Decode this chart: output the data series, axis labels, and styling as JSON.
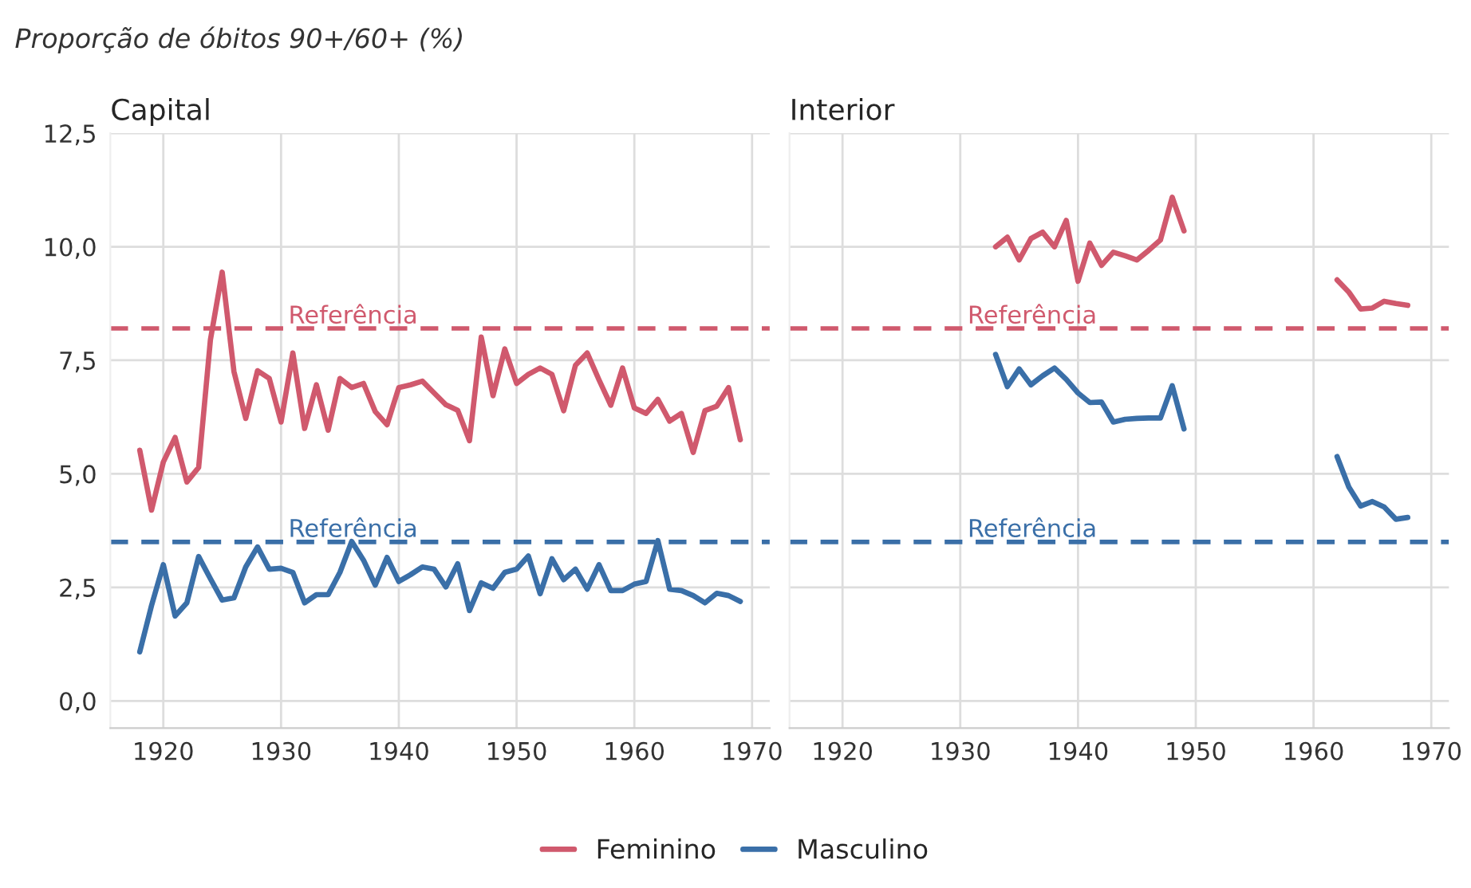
{
  "chart_data": [
    {
      "type": "line",
      "title": "Capital",
      "ylabel": "Proporção de óbitos 90+/60+ (%)",
      "xlim": [
        1915.5,
        1971.5
      ],
      "ylim": [
        -0.6,
        12.5
      ],
      "xticks": [
        1920,
        1930,
        1940,
        1950,
        1960,
        1970
      ],
      "yticks": [
        {
          "value": 0,
          "label": "0,0"
        },
        {
          "value": 2.5,
          "label": "2,5"
        },
        {
          "value": 5,
          "label": "5,0"
        },
        {
          "value": 7.5,
          "label": "7,5"
        },
        {
          "value": 10,
          "label": "10,0"
        },
        {
          "value": 12.5,
          "label": "12,5"
        }
      ],
      "grid": true,
      "legend": "bottom",
      "line_style": "solid",
      "x": [
        1918,
        1919,
        1920,
        1921,
        1922,
        1923,
        1924,
        1925,
        1926,
        1927,
        1928,
        1929,
        1930,
        1931,
        1932,
        1933,
        1934,
        1935,
        1936,
        1937,
        1938,
        1939,
        1940,
        1941,
        1942,
        1943,
        1944,
        1945,
        1946,
        1947,
        1948,
        1949,
        1950,
        1951,
        1952,
        1953,
        1954,
        1955,
        1956,
        1957,
        1958,
        1959,
        1960,
        1961,
        1962,
        1963,
        1964,
        1965,
        1966,
        1967,
        1968,
        1969
      ],
      "series": [
        {
          "name": "Feminino",
          "color": "#d0596d",
          "values": [
            5.52,
            4.2,
            5.26,
            5.8,
            4.82,
            5.14,
            7.95,
            9.44,
            7.25,
            6.22,
            7.27,
            7.1,
            6.14,
            7.66,
            6.0,
            6.96,
            5.96,
            7.1,
            6.9,
            6.99,
            6.37,
            6.08,
            6.9,
            6.96,
            7.04,
            6.78,
            6.52,
            6.4,
            5.73,
            8.01,
            6.72,
            7.75,
            6.99,
            7.19,
            7.33,
            7.19,
            6.39,
            7.39,
            7.66,
            7.07,
            6.51,
            7.33,
            6.45,
            6.33,
            6.64,
            6.16,
            6.33,
            5.47,
            6.39,
            6.49,
            6.9,
            5.75
          ]
        },
        {
          "name": "Masculino",
          "color": "#3a6fa8",
          "values": [
            1.08,
            2.1,
            3.0,
            1.87,
            2.16,
            3.18,
            2.69,
            2.22,
            2.27,
            2.95,
            3.39,
            2.9,
            2.92,
            2.83,
            2.16,
            2.34,
            2.34,
            2.83,
            3.51,
            3.1,
            2.55,
            3.16,
            2.63,
            2.78,
            2.95,
            2.9,
            2.51,
            3.02,
            1.99,
            2.6,
            2.48,
            2.83,
            2.9,
            3.19,
            2.36,
            3.13,
            2.67,
            2.9,
            2.46,
            3.0,
            2.43,
            2.43,
            2.57,
            2.63,
            3.53,
            2.46,
            2.43,
            2.32,
            2.16,
            2.37,
            2.32,
            2.19
          ]
        }
      ],
      "ref_lines": [
        {
          "axis": "y",
          "value": 8.2,
          "label": "Referência",
          "color": "#d0596d",
          "line_style": "dashed"
        },
        {
          "axis": "y",
          "value": 3.5,
          "label": "Referência",
          "color": "#3a6fa8",
          "line_style": "dashed"
        }
      ]
    },
    {
      "type": "line",
      "title": "Interior",
      "xlim": [
        1915.5,
        1971.5
      ],
      "ylim": [
        -0.6,
        12.5
      ],
      "tick_labels": "x",
      "xticks": [
        1920,
        1930,
        1940,
        1950,
        1960,
        1970
      ],
      "yticks": [
        {
          "value": 0,
          "label": null
        },
        {
          "value": 2.5,
          "label": null
        },
        {
          "value": 5,
          "label": null
        },
        {
          "value": 7.5,
          "label": null
        },
        {
          "value": 10,
          "label": null
        },
        {
          "value": 12.5,
          "label": null
        }
      ],
      "grid": true,
      "line_style": "solid",
      "x": [
        1933,
        1934,
        1935,
        1936,
        1937,
        1938,
        1939,
        1940,
        1941,
        1942,
        1943,
        1944,
        1945,
        1946,
        1947,
        1948,
        1949,
        1950,
        1951,
        1952,
        1953,
        1954,
        1955,
        1956,
        1957,
        1958,
        1959,
        1960,
        1961,
        1962,
        1963,
        1964,
        1965,
        1966,
        1967,
        1968
      ],
      "series": [
        {
          "name": "Feminino",
          "color": "#d0596d",
          "values": [
            10.0,
            10.21,
            9.71,
            10.18,
            10.32,
            10.0,
            10.58,
            9.24,
            10.08,
            9.59,
            9.88,
            9.8,
            9.71,
            9.92,
            10.15,
            11.09,
            10.35,
            null,
            null,
            null,
            null,
            null,
            null,
            null,
            null,
            null,
            null,
            null,
            null,
            9.27,
            9.0,
            8.63,
            8.65,
            8.8,
            8.75,
            8.71
          ]
        },
        {
          "name": "Masculino",
          "color": "#3a6fa8",
          "values": [
            7.63,
            6.92,
            7.31,
            6.96,
            7.16,
            7.33,
            7.08,
            6.78,
            6.57,
            6.58,
            6.14,
            6.2,
            6.22,
            6.23,
            6.23,
            6.94,
            5.99,
            null,
            null,
            null,
            null,
            null,
            null,
            null,
            null,
            null,
            null,
            null,
            null,
            5.38,
            4.71,
            4.29,
            4.39,
            4.27,
            4.0,
            4.04
          ]
        }
      ],
      "ref_lines": [
        {
          "axis": "y",
          "value": 8.2,
          "label": "Referência",
          "color": "#d0596d",
          "line_style": "dashed"
        },
        {
          "axis": "y",
          "value": 3.5,
          "label": "Referência",
          "color": "#3a6fa8",
          "line_style": "dashed"
        }
      ]
    }
  ]
}
